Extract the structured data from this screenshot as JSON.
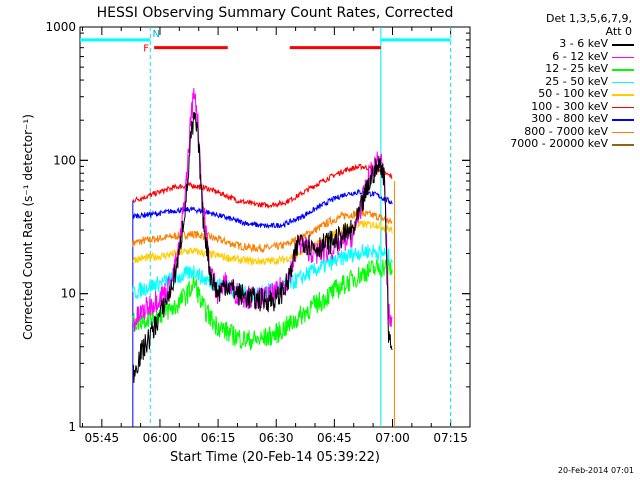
{
  "chart_data": {
    "type": "line",
    "title": "HESSI Observing Summary Count Rates, Corrected",
    "xlabel": "Start Time (20-Feb-14 05:39:22)",
    "ylabel": "Corrected Count Rate (s⁻¹ detector⁻¹)",
    "x_ticks": [
      "05:45",
      "06:00",
      "06:15",
      "06:30",
      "06:45",
      "07:00",
      "07:15"
    ],
    "y_ticks": [
      "1",
      "10",
      "100",
      "1000"
    ],
    "y_scale": "log",
    "ylim": [
      1,
      1000
    ],
    "xlim": [
      "05:39:22",
      "07:20:00"
    ],
    "data_start": "05:53:00",
    "data_end": "07:00:30",
    "legend_header": [
      "Det 1,3,5,6,7,9,",
      "Att 0"
    ],
    "series": [
      {
        "name": "3 - 6 keV",
        "color": "#000000",
        "x": [
          "05:53",
          "05:55",
          "05:57",
          "05:59",
          "06:01",
          "06:03",
          "06:05",
          "06:07",
          "06:08",
          "06:09",
          "06:10",
          "06:11",
          "06:13",
          "06:15",
          "06:17",
          "06:20",
          "06:25",
          "06:30",
          "06:33",
          "06:36",
          "06:40",
          "06:45",
          "06:50",
          "06:53",
          "06:55",
          "06:57",
          "06:58",
          "06:59",
          "07:00"
        ],
        "values": [
          2.5,
          3.5,
          4.5,
          6,
          8,
          11,
          20,
          60,
          150,
          210,
          130,
          40,
          14,
          10,
          12,
          10,
          9,
          9,
          12,
          26,
          22,
          25,
          30,
          55,
          80,
          95,
          70,
          5,
          4
        ]
      },
      {
        "name": "6 - 12 keV",
        "color": "#ff00ff",
        "x": [
          "05:53",
          "05:55",
          "05:57",
          "05:59",
          "06:01",
          "06:03",
          "06:05",
          "06:07",
          "06:08",
          "06:09",
          "06:10",
          "06:11",
          "06:13",
          "06:15",
          "06:17",
          "06:20",
          "06:25",
          "06:30",
          "06:33",
          "06:36",
          "06:40",
          "06:45",
          "06:50",
          "06:53",
          "06:55",
          "06:57",
          "06:58",
          "06:59",
          "07:00"
        ],
        "values": [
          6,
          7,
          8,
          9,
          10,
          12,
          22,
          80,
          220,
          340,
          160,
          50,
          15,
          10,
          12,
          10,
          9,
          10,
          13,
          24,
          20,
          22,
          28,
          60,
          90,
          100,
          70,
          7,
          6
        ]
      },
      {
        "name": "12 - 25 keV",
        "color": "#00ff00",
        "x": [
          "05:53",
          "05:56",
          "06:00",
          "06:04",
          "06:07",
          "06:09",
          "06:11",
          "06:14",
          "06:18",
          "06:22",
          "06:26",
          "06:30",
          "06:34",
          "06:38",
          "06:42",
          "06:46",
          "06:50",
          "06:54",
          "06:58",
          "07:00"
        ],
        "values": [
          6,
          6.5,
          7,
          8,
          10,
          12,
          8,
          6,
          5,
          4.5,
          4.5,
          5,
          6,
          7.5,
          9,
          11,
          13,
          15,
          16,
          15
        ]
      },
      {
        "name": "25 - 50 keV",
        "color": "#00ffff",
        "x": [
          "05:53",
          "05:56",
          "06:00",
          "06:04",
          "06:07",
          "06:09",
          "06:11",
          "06:14",
          "06:18",
          "06:22",
          "06:26",
          "06:30",
          "06:34",
          "06:38",
          "06:42",
          "06:46",
          "06:50",
          "06:54",
          "06:58",
          "07:00"
        ],
        "values": [
          10,
          11,
          12,
          13,
          14,
          15,
          13,
          12,
          11,
          10,
          10,
          11,
          12,
          14,
          16,
          18,
          20,
          21,
          20,
          18
        ]
      },
      {
        "name": "50 - 100 keV",
        "color": "#ffcc00",
        "x": [
          "05:53",
          "05:56",
          "06:00",
          "06:04",
          "06:08",
          "06:12",
          "06:16",
          "06:20",
          "06:24",
          "06:28",
          "06:32",
          "06:36",
          "06:40",
          "06:44",
          "06:48",
          "06:52",
          "06:56",
          "07:00"
        ],
        "values": [
          18,
          18.5,
          19,
          20,
          21,
          20,
          19,
          18,
          17.5,
          17.5,
          18,
          20,
          23,
          27,
          31,
          33,
          33,
          30
        ]
      },
      {
        "name": "100 - 300 keV",
        "color": "#ff0000",
        "x": [
          "05:53",
          "05:56",
          "06:00",
          "06:04",
          "06:08",
          "06:12",
          "06:16",
          "06:20",
          "06:24",
          "06:28",
          "06:32",
          "06:36",
          "06:40",
          "06:44",
          "06:48",
          "06:52",
          "06:56",
          "07:00"
        ],
        "values": [
          50,
          53,
          58,
          63,
          65,
          62,
          56,
          50,
          47,
          46,
          48,
          55,
          65,
          75,
          85,
          90,
          85,
          75
        ]
      },
      {
        "name": "300 - 800 keV",
        "color": "#0000ff",
        "x": [
          "05:53",
          "05:56",
          "06:00",
          "06:04",
          "06:08",
          "06:12",
          "06:16",
          "06:20",
          "06:24",
          "06:28",
          "06:32",
          "06:36",
          "06:40",
          "06:44",
          "06:48",
          "06:52",
          "06:56",
          "07:00"
        ],
        "values": [
          38,
          39,
          40,
          42,
          43,
          41,
          38,
          35,
          33,
          32,
          33,
          37,
          43,
          50,
          56,
          58,
          55,
          48
        ]
      },
      {
        "name": "800 - 7000 keV",
        "color": "#ff8000",
        "x": [
          "05:53",
          "05:56",
          "06:00",
          "06:04",
          "06:08",
          "06:12",
          "06:16",
          "06:20",
          "06:24",
          "06:28",
          "06:32",
          "06:36",
          "06:40",
          "06:44",
          "06:48",
          "06:52",
          "06:56",
          "07:00"
        ],
        "values": [
          24,
          25,
          26,
          27,
          28,
          27,
          25,
          23,
          22,
          22,
          23,
          26,
          30,
          35,
          39,
          40,
          38,
          34
        ]
      },
      {
        "name": "7000 - 20000 keV",
        "color": "#8b6914",
        "x": [],
        "values": []
      }
    ],
    "annotations": [
      {
        "type": "flag",
        "label": "F",
        "color": "#ff0000",
        "start": "05:58:30",
        "end": "06:17:30",
        "level": 700
      },
      {
        "type": "flag",
        "label": "",
        "color": "#ff0000",
        "start": "06:33:30",
        "end": "06:57:00",
        "level": 700
      },
      {
        "type": "flag",
        "label": "N",
        "color": "#00ffff",
        "start": "05:39:22",
        "end": "05:57:30",
        "level": 800
      },
      {
        "type": "flag",
        "label": "",
        "color": "#00ffff",
        "start": "06:57:00",
        "end": "07:15:00",
        "level": 800
      }
    ],
    "night_boundaries": [
      "05:57:30",
      "06:57:00",
      "07:15:00"
    ]
  },
  "footer": {
    "timestamp": "20-Feb-2014 07:01"
  }
}
